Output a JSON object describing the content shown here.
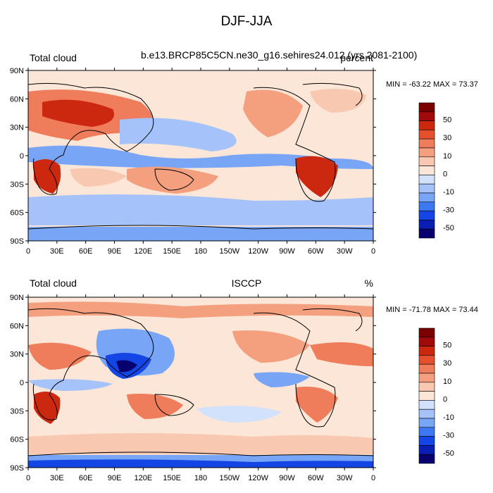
{
  "title": "DJF-JJA",
  "panels": [
    {
      "left_label": "Total cloud",
      "center_label": "b.e13.BRCP85C5CN.ne30_g16.sehires24.012 (yrs 2081-2100)",
      "right_label": "percent",
      "min_max": "MIN = -63.22 MAX = 73.37"
    },
    {
      "left_label": "Total cloud",
      "center_label": "ISCCP",
      "right_label": "%",
      "min_max": "MIN = -71.78 MAX = 73.44"
    }
  ],
  "lat_ticks": [
    "90N",
    "60N",
    "30N",
    "0",
    "30S",
    "60S",
    "90S"
  ],
  "lon_ticks": [
    "0",
    "30E",
    "60E",
    "90E",
    "120E",
    "150E",
    "180",
    "150W",
    "120W",
    "90W",
    "60W",
    "30W",
    "0"
  ],
  "colorbar": {
    "colors": [
      "#08006e",
      "#0a1eb4",
      "#1446e6",
      "#3c78f0",
      "#78a5f5",
      "#a5c3fa",
      "#d2e1fc",
      "#fbe6d7",
      "#f8c8b0",
      "#f4a07f",
      "#ef7c5a",
      "#e4502d",
      "#cc2810",
      "#a00a0a",
      "#7a0000"
    ],
    "labels": [
      "50",
      "30",
      "10",
      "0",
      "-10",
      "-30",
      "-50"
    ]
  },
  "colors": {
    "ocean_base": "#fbe6d7",
    "warm": "#ef7c5a",
    "warm_strong": "#cc2810",
    "cool": "#a5c3fa",
    "cool_strong": "#1446e6",
    "coast": "#000000"
  }
}
